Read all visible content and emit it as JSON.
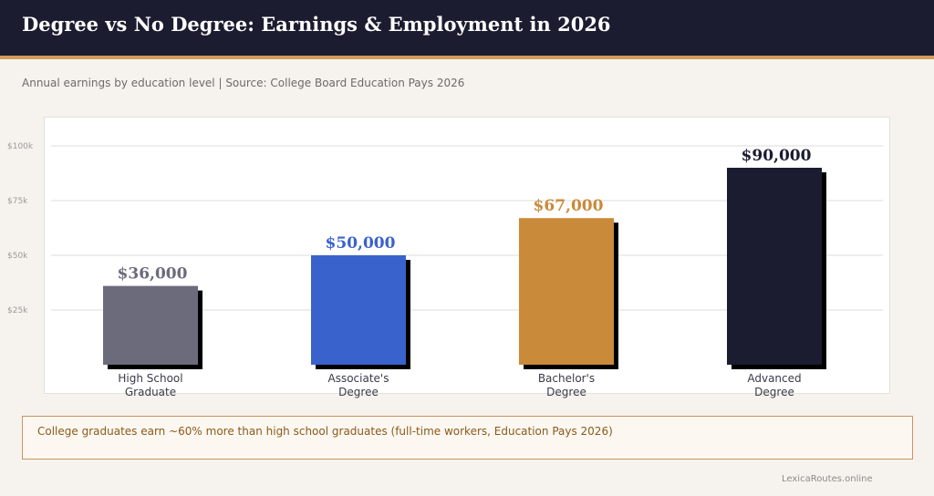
{
  "header": {
    "title": "Degree vs No Degree: Earnings & Employment in 2026"
  },
  "subtitle": "Annual earnings by education level  |  Source: College Board Education Pays 2026",
  "chart_data": {
    "type": "bar",
    "categories": [
      [
        "High School",
        "Graduate"
      ],
      [
        "Associate's",
        "Degree"
      ],
      [
        "Bachelor's",
        "Degree"
      ],
      [
        "Advanced",
        "Degree"
      ]
    ],
    "values": [
      36000,
      50000,
      67000,
      90000
    ],
    "value_labels": [
      "$36,000",
      "$50,000",
      "$67,000",
      "$90,000"
    ],
    "bar_colors": [
      "#6b6b7b",
      "#3a62cc",
      "#c98a3a",
      "#1b1c30"
    ],
    "label_colors": [
      "#6b6b7b",
      "#3a62cc",
      "#c98a3a",
      "#1b1c30"
    ],
    "yticks": [
      25000,
      50000,
      75000,
      100000
    ],
    "ytick_labels": [
      "$25k",
      "$50k",
      "$75k",
      "$100k"
    ],
    "ylim": [
      0,
      100000
    ],
    "grid": true,
    "title": "",
    "xlabel": "",
    "ylabel": ""
  },
  "callout": {
    "text": "College graduates earn ~60% more than high school graduates (full-time workers, Education Pays 2026)"
  },
  "footer": {
    "text": "LexicaRoutes.online"
  }
}
